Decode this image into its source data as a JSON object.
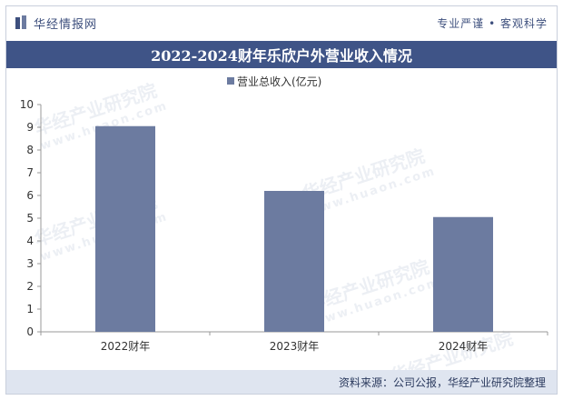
{
  "header": {
    "brand": "华经情报网",
    "tagline": "专业严谨 • 客观科学"
  },
  "title": "2022-2024财年乐欣户外营业收入情况",
  "footer": {
    "source": "资料来源：公司公报，华经产业研究院整理"
  },
  "watermark": {
    "name": "华经产业研究院",
    "url": "www.huaon.com"
  },
  "colors": {
    "bar": "#6c7ba0",
    "title_band": "#3f5487",
    "brand": "#3d4f7d"
  },
  "chart_data": {
    "type": "bar",
    "categories": [
      "2022财年",
      "2023财年",
      "2024财年"
    ],
    "series": [
      {
        "name": "营业总收入(亿元)",
        "values": [
          9.05,
          6.2,
          5.05
        ]
      }
    ],
    "ylim": [
      0,
      10
    ],
    "yticks": [
      0,
      1,
      2,
      3,
      4,
      5,
      6,
      7,
      8,
      9,
      10
    ],
    "legend_position": "top-center",
    "grid": false
  }
}
